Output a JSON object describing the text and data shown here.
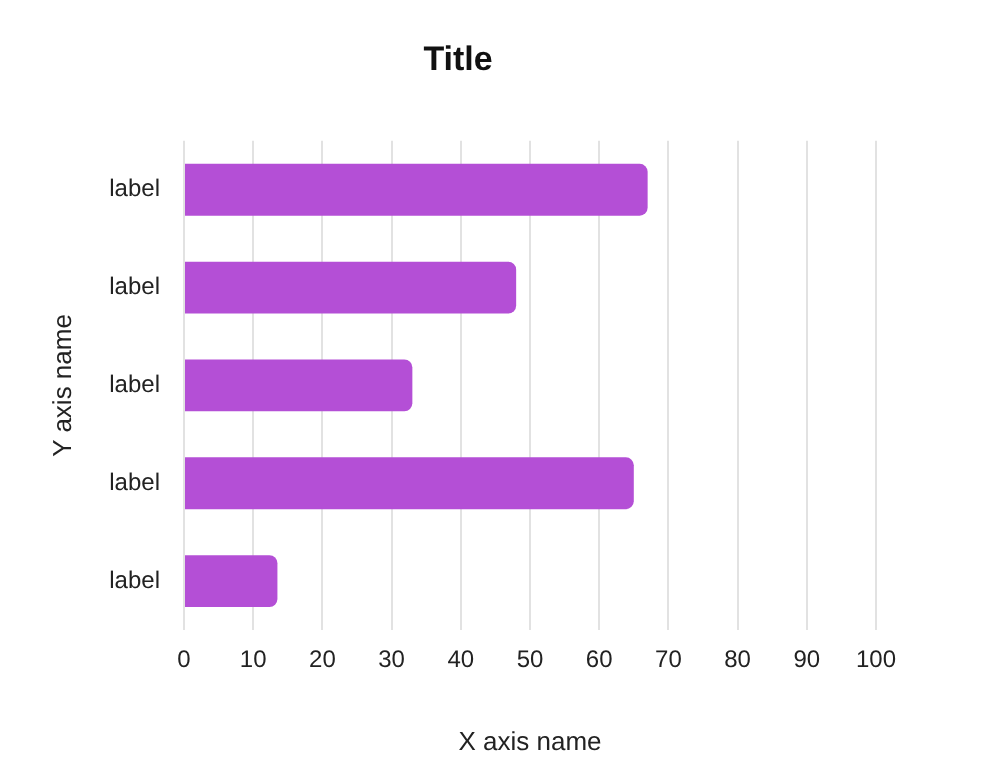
{
  "chart_data": {
    "type": "bar",
    "orientation": "horizontal",
    "title": "Title",
    "xlabel": "X axis name",
    "ylabel": "Y axis name",
    "categories": [
      "label",
      "label",
      "label",
      "label",
      "label"
    ],
    "values": [
      67,
      48,
      33,
      65,
      13.5
    ],
    "color": "#b44fd6",
    "xlim": [
      0,
      100
    ],
    "xticks": [
      0,
      10,
      20,
      30,
      40,
      50,
      60,
      70,
      80,
      90,
      100
    ],
    "grid": "x",
    "legend": false
  }
}
